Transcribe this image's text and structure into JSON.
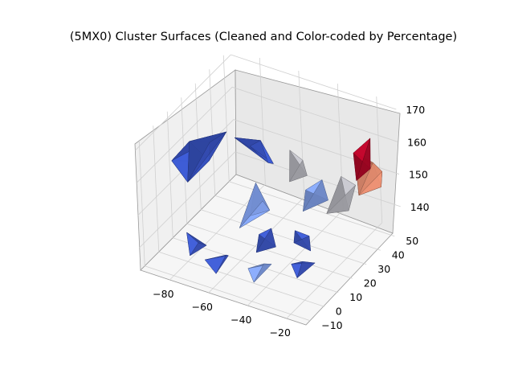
{
  "chart_data": {
    "type": "surface3d",
    "title": "(5MX0) Cluster Surfaces (Cleaned and Color-coded by Percentage)",
    "axes": {
      "x": {
        "ticks": [
          -80,
          -60,
          -40,
          -20
        ],
        "tick_labels": [
          "−80",
          "−60",
          "−40",
          "−20"
        ],
        "range": [
          -95,
          -10
        ]
      },
      "y": {
        "ticks": [
          -10,
          0,
          10,
          20,
          30,
          40,
          50
        ],
        "tick_labels": [
          "−10",
          "0",
          "10",
          "20",
          "30",
          "40",
          "50"
        ],
        "range": [
          -13,
          55
        ]
      },
      "z": {
        "ticks": [
          140,
          150,
          160,
          170
        ],
        "tick_labels": [
          "140",
          "150",
          "160",
          "170"
        ],
        "range": [
          133,
          172
        ]
      }
    },
    "grid": true,
    "colors": {
      "blue_cluster": "#3a56c8",
      "light_blue_cluster": "#7f9ee8",
      "gray_cluster": "#b9b9c0",
      "salmon_cluster": "#e08a6e",
      "red_cluster": "#b40426",
      "pane": "#f2f2f2",
      "grid": "#d0d0d0"
    },
    "clusters": [
      {
        "color": "blue_cluster",
        "points": [
          [
            -90,
            5,
            160
          ],
          [
            -88,
            15,
            162
          ],
          [
            -85,
            25,
            158
          ],
          [
            -82,
            20,
            155
          ],
          [
            -86,
            10,
            152
          ],
          [
            -80,
            30,
            160
          ]
        ]
      },
      {
        "color": "blue_cluster",
        "points": [
          [
            -72,
            25,
            162
          ],
          [
            -68,
            30,
            158
          ],
          [
            -70,
            40,
            155
          ],
          [
            -65,
            38,
            150
          ],
          [
            -60,
            35,
            152
          ]
        ]
      },
      {
        "color": "light_blue_cluster",
        "points": [
          [
            -62,
            25,
            150
          ],
          [
            -55,
            20,
            148
          ],
          [
            -58,
            15,
            145
          ],
          [
            -50,
            18,
            147
          ],
          [
            -60,
            10,
            143
          ]
        ]
      },
      {
        "color": "gray_cluster",
        "points": [
          [
            -55,
            40,
            155
          ],
          [
            -50,
            42,
            152
          ],
          [
            -45,
            38,
            150
          ],
          [
            -52,
            35,
            148
          ]
        ]
      },
      {
        "color": "light_blue_cluster",
        "points": [
          [
            -40,
            30,
            150
          ],
          [
            -35,
            35,
            152
          ],
          [
            -30,
            32,
            148
          ],
          [
            -38,
            25,
            146
          ]
        ]
      },
      {
        "color": "blue_cluster",
        "points": [
          [
            -50,
            10,
            143
          ],
          [
            -45,
            12,
            145
          ],
          [
            -40,
            8,
            142
          ],
          [
            -48,
            5,
            140
          ]
        ]
      },
      {
        "color": "gray_cluster",
        "points": [
          [
            -25,
            35,
            155
          ],
          [
            -20,
            38,
            152
          ],
          [
            -18,
            30,
            148
          ],
          [
            -28,
            28,
            146
          ]
        ]
      },
      {
        "color": "salmon_cluster",
        "points": [
          [
            -25,
            45,
            158
          ],
          [
            -18,
            48,
            155
          ],
          [
            -12,
            45,
            150
          ],
          [
            -20,
            40,
            148
          ],
          [
            -15,
            50,
            152
          ]
        ]
      },
      {
        "color": "red_cluster",
        "points": [
          [
            -28,
            48,
            156
          ],
          [
            -22,
            52,
            160
          ],
          [
            -18,
            46,
            154
          ],
          [
            -24,
            44,
            150
          ]
        ]
      },
      {
        "color": "blue_cluster",
        "points": [
          [
            -80,
            0,
            142
          ],
          [
            -75,
            -5,
            138
          ],
          [
            -70,
            0,
            140
          ],
          [
            -78,
            5,
            137
          ]
        ]
      },
      {
        "color": "blue_cluster",
        "points": [
          [
            -65,
            -8,
            140
          ],
          [
            -58,
            -10,
            138
          ],
          [
            -55,
            -5,
            142
          ],
          [
            -60,
            0,
            139
          ]
        ]
      },
      {
        "color": "light_blue_cluster",
        "points": [
          [
            -45,
            -5,
            140
          ],
          [
            -40,
            -8,
            138
          ],
          [
            -35,
            -2,
            142
          ],
          [
            -42,
            2,
            139
          ]
        ]
      },
      {
        "color": "blue_cluster",
        "points": [
          [
            -30,
            5,
            140
          ],
          [
            -25,
            2,
            138
          ],
          [
            -20,
            8,
            141
          ],
          [
            -28,
            10,
            139
          ]
        ]
      },
      {
        "color": "blue_cluster",
        "points": [
          [
            -35,
            15,
            145
          ],
          [
            -30,
            18,
            143
          ],
          [
            -25,
            12,
            142
          ],
          [
            -32,
            10,
            144
          ]
        ]
      }
    ]
  }
}
